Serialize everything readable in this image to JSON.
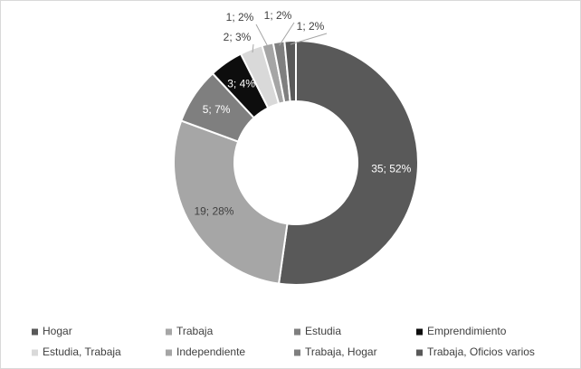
{
  "chart_data": {
    "type": "donut",
    "categories": [
      "Hogar",
      "Trabaja",
      "Estudia",
      "Emprendimiento",
      "Estudia, Trabaja",
      "Independiente",
      "Trabaja, Hogar",
      "Trabaja, Oficios varios"
    ],
    "values": [
      35,
      19,
      5,
      3,
      2,
      1,
      1,
      1
    ],
    "value_labels": [
      "35; 52%",
      "19; 28%",
      "5; 7%",
      "3; 4%",
      "2; 3%",
      "1; 2%",
      "1; 2%",
      "1; 2%"
    ],
    "colors": [
      "#595959",
      "#a6a6a6",
      "#7f7f7f",
      "#0d0d0d",
      "#d9d9d9",
      "#a5a5a5",
      "#7f7f7f",
      "#595959"
    ],
    "legend": "bottom"
  }
}
